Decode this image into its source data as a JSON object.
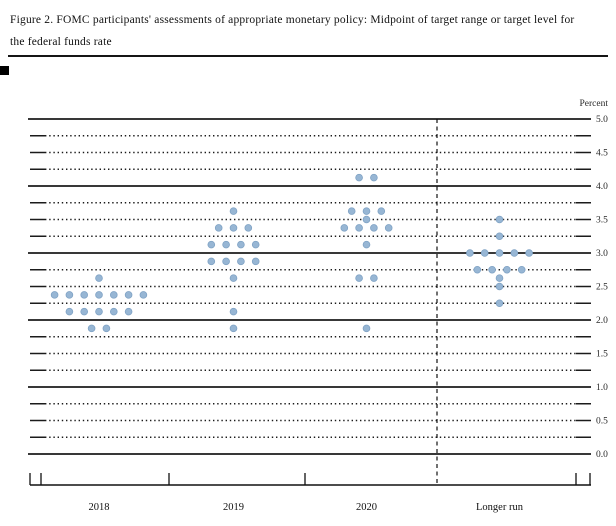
{
  "title": {
    "line1": "Figure 2. FOMC participants' assessments of appropriate monetary policy: Midpoint of target range or target level for",
    "line2": "the federal funds rate"
  },
  "chart_data": {
    "type": "scatter",
    "title": "FOMC participants' assessments of appropriate monetary policy: Midpoint of target range or target level for the federal funds rate",
    "ylabel": "Percent",
    "ylim": [
      0.0,
      5.0
    ],
    "grid": true,
    "grid_step": 0.25,
    "solid_gridlines_at_integers": true,
    "y_major_ticks": [
      5.0,
      4.5,
      4.0,
      3.5,
      3.0,
      2.5,
      2.0,
      1.5,
      1.0,
      0.5,
      0.0
    ],
    "y_tick_labels": [
      "5.0",
      "4.5",
      "4.0",
      "3.5",
      "3.0",
      "2.5",
      "2.0",
      "1.5",
      "1.0",
      "0.5",
      "0.0"
    ],
    "categories": [
      "2018",
      "2019",
      "2020",
      "Longer run"
    ],
    "separator_before_category": "Longer run",
    "dot_color": "#97b6d4",
    "dot_stroke_color": "#7fa2c4",
    "line_color": "#1b1b1b",
    "series": [
      {
        "name": "2018",
        "dots": {
          "2.625": 1,
          "2.375": 7,
          "2.125": 5,
          "1.875": 2
        }
      },
      {
        "name": "2019",
        "dots": {
          "3.625": 1,
          "3.375": 3,
          "3.125": 4,
          "2.875": 4,
          "2.625": 1,
          "2.125": 1,
          "1.875": 1
        }
      },
      {
        "name": "2020",
        "dots": {
          "4.125": 2,
          "3.625": 3,
          "3.5": 1,
          "3.375": 4,
          "3.125": 1,
          "2.625": 2,
          "1.875": 1
        }
      },
      {
        "name": "Longer run",
        "dots": {
          "3.5": 1,
          "3.25": 1,
          "3.0": 5,
          "2.75": 4,
          "2.625": 1,
          "2.5": 1,
          "2.25": 1
        }
      }
    ]
  }
}
